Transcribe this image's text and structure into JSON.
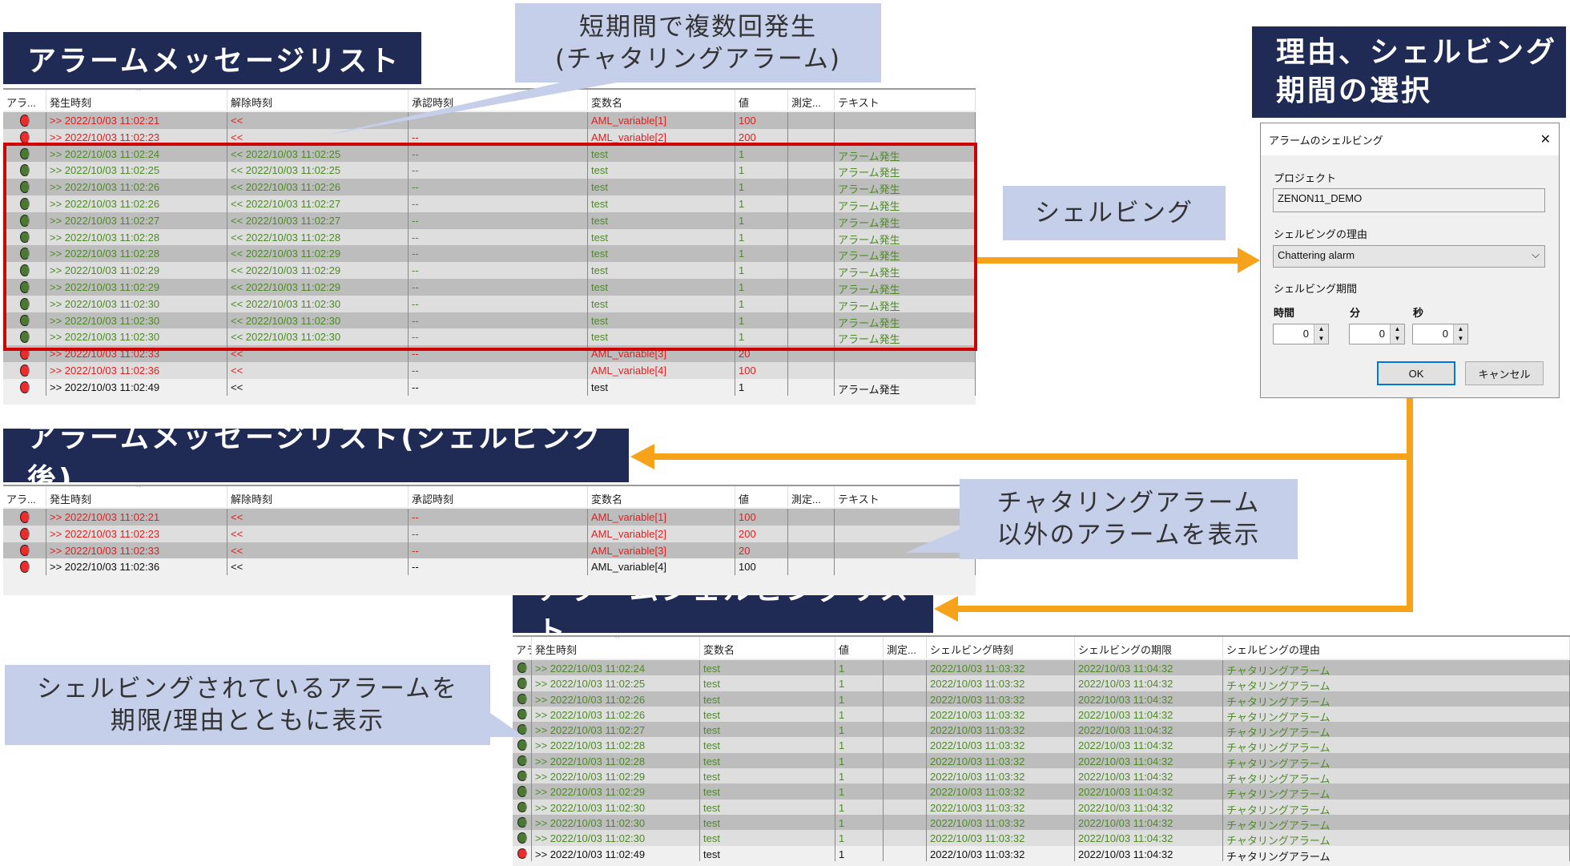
{
  "titles": {
    "list": "アラームメッセージリスト",
    "after": "アラームメッセージリスト(シェルビング後)",
    "shelve_list": "アラームシェルビングリスト",
    "select": "理由、シェルビング\n期間の選択"
  },
  "callouts": {
    "chatter": [
      "短期間で複数回発生",
      "(チャタリングアラーム)"
    ],
    "shelving": "シェルビング",
    "others": [
      "チャタリングアラーム",
      "以外のアラームを表示"
    ],
    "shelved": [
      "シェルビングされているアラームを",
      "期限/理由とともに表示"
    ]
  },
  "colors": {
    "red": "#e02020",
    "green": "#4d8a26",
    "title_bg": "#1f2a55",
    "callout_bg": "#c5cfea",
    "arrow": "#f7a21b",
    "highlight": "#d00000"
  },
  "list_columns": [
    "アラ...",
    "発生時刻",
    "解除時刻",
    "承認時刻",
    "変数名",
    "値",
    "測定...",
    "テキスト"
  ],
  "list_rows": [
    {
      "s": "red",
      "c": "red",
      "v": [
        ">> 2022/10/03 11:02:21",
        "<<",
        "",
        "AML_variable[1]",
        "100",
        "",
        ""
      ]
    },
    {
      "s": "red",
      "c": "red",
      "v": [
        ">> 2022/10/03 11:02:23",
        "<<",
        "--",
        "AML_variable[2]",
        "200",
        "",
        ""
      ]
    },
    {
      "s": "green",
      "c": "green",
      "v": [
        ">> 2022/10/03 11:02:24",
        "<< 2022/10/03 11:02:25",
        "--",
        "test",
        "1",
        "",
        "アラーム発生"
      ]
    },
    {
      "s": "green",
      "c": "green",
      "v": [
        ">> 2022/10/03 11:02:25",
        "<< 2022/10/03 11:02:25",
        "--",
        "test",
        "1",
        "",
        "アラーム発生"
      ]
    },
    {
      "s": "green",
      "c": "green",
      "v": [
        ">> 2022/10/03 11:02:26",
        "<< 2022/10/03 11:02:26",
        "--",
        "test",
        "1",
        "",
        "アラーム発生"
      ]
    },
    {
      "s": "green",
      "c": "green",
      "v": [
        ">> 2022/10/03 11:02:26",
        "<< 2022/10/03 11:02:27",
        "--",
        "test",
        "1",
        "",
        "アラーム発生"
      ]
    },
    {
      "s": "green",
      "c": "green",
      "v": [
        ">> 2022/10/03 11:02:27",
        "<< 2022/10/03 11:02:27",
        "--",
        "test",
        "1",
        "",
        "アラーム発生"
      ]
    },
    {
      "s": "green",
      "c": "green",
      "v": [
        ">> 2022/10/03 11:02:28",
        "<< 2022/10/03 11:02:28",
        "--",
        "test",
        "1",
        "",
        "アラーム発生"
      ]
    },
    {
      "s": "green",
      "c": "green",
      "v": [
        ">> 2022/10/03 11:02:28",
        "<< 2022/10/03 11:02:29",
        "--",
        "test",
        "1",
        "",
        "アラーム発生"
      ]
    },
    {
      "s": "green",
      "c": "green",
      "v": [
        ">> 2022/10/03 11:02:29",
        "<< 2022/10/03 11:02:29",
        "--",
        "test",
        "1",
        "",
        "アラーム発生"
      ]
    },
    {
      "s": "green",
      "c": "green",
      "v": [
        ">> 2022/10/03 11:02:29",
        "<< 2022/10/03 11:02:29",
        "--",
        "test",
        "1",
        "",
        "アラーム発生"
      ]
    },
    {
      "s": "green",
      "c": "green",
      "v": [
        ">> 2022/10/03 11:02:30",
        "<< 2022/10/03 11:02:30",
        "--",
        "test",
        "1",
        "",
        "アラーム発生"
      ]
    },
    {
      "s": "green",
      "c": "green",
      "v": [
        ">> 2022/10/03 11:02:30",
        "<< 2022/10/03 11:02:30",
        "--",
        "test",
        "1",
        "",
        "アラーム発生"
      ]
    },
    {
      "s": "green",
      "c": "green",
      "v": [
        ">> 2022/10/03 11:02:30",
        "<< 2022/10/03 11:02:30",
        "--",
        "test",
        "1",
        "",
        "アラーム発生"
      ]
    },
    {
      "s": "red",
      "c": "red",
      "v": [
        ">> 2022/10/03 11:02:33",
        "<<",
        "--",
        "AML_variable[3]",
        "20",
        "",
        ""
      ]
    },
    {
      "s": "red",
      "c": "red",
      "v": [
        ">> 2022/10/03 11:02:36",
        "<<",
        "--",
        "AML_variable[4]",
        "100",
        "",
        ""
      ]
    },
    {
      "s": "red",
      "c": "black",
      "v": [
        ">> 2022/10/03 11:02:49",
        "<<",
        "--",
        "test",
        "1",
        "",
        "アラーム発生"
      ]
    }
  ],
  "after_rows": [
    {
      "s": "red",
      "c": "red",
      "v": [
        ">> 2022/10/03 11:02:21",
        "<<",
        "--",
        "AML_variable[1]",
        "100",
        "",
        ""
      ]
    },
    {
      "s": "red",
      "c": "red",
      "v": [
        ">> 2022/10/03 11:02:23",
        "<<",
        "--",
        "AML_variable[2]",
        "200",
        "",
        ""
      ]
    },
    {
      "s": "red",
      "c": "red",
      "v": [
        ">> 2022/10/03 11:02:33",
        "<<",
        "--",
        "AML_variable[3]",
        "20",
        "",
        ""
      ]
    },
    {
      "s": "red",
      "c": "black",
      "v": [
        ">> 2022/10/03 11:02:36",
        "<<",
        "--",
        "AML_variable[4]",
        "100",
        "",
        ""
      ]
    }
  ],
  "shelve_columns": [
    "アラ...",
    "発生時刻",
    "変数名",
    "値",
    "測定...",
    "シェルビング時刻",
    "シェルビングの期限",
    "シェルビングの理由"
  ],
  "shelve_rows": [
    {
      "s": "green",
      "c": "green",
      "v": [
        ">> 2022/10/03 11:02:24",
        "test",
        "1",
        "",
        "2022/10/03 11:03:32",
        "2022/10/03 11:04:32",
        "チャタリングアラーム"
      ]
    },
    {
      "s": "green",
      "c": "green",
      "v": [
        ">> 2022/10/03 11:02:25",
        "test",
        "1",
        "",
        "2022/10/03 11:03:32",
        "2022/10/03 11:04:32",
        "チャタリングアラーム"
      ]
    },
    {
      "s": "green",
      "c": "green",
      "v": [
        ">> 2022/10/03 11:02:26",
        "test",
        "1",
        "",
        "2022/10/03 11:03:32",
        "2022/10/03 11:04:32",
        "チャタリングアラーム"
      ]
    },
    {
      "s": "green",
      "c": "green",
      "v": [
        ">> 2022/10/03 11:02:26",
        "test",
        "1",
        "",
        "2022/10/03 11:03:32",
        "2022/10/03 11:04:32",
        "チャタリングアラーム"
      ]
    },
    {
      "s": "green",
      "c": "green",
      "v": [
        ">> 2022/10/03 11:02:27",
        "test",
        "1",
        "",
        "2022/10/03 11:03:32",
        "2022/10/03 11:04:32",
        "チャタリングアラーム"
      ]
    },
    {
      "s": "green",
      "c": "green",
      "v": [
        ">> 2022/10/03 11:02:28",
        "test",
        "1",
        "",
        "2022/10/03 11:03:32",
        "2022/10/03 11:04:32",
        "チャタリングアラーム"
      ]
    },
    {
      "s": "green",
      "c": "green",
      "v": [
        ">> 2022/10/03 11:02:28",
        "test",
        "1",
        "",
        "2022/10/03 11:03:32",
        "2022/10/03 11:04:32",
        "チャタリングアラーム"
      ]
    },
    {
      "s": "green",
      "c": "green",
      "v": [
        ">> 2022/10/03 11:02:29",
        "test",
        "1",
        "",
        "2022/10/03 11:03:32",
        "2022/10/03 11:04:32",
        "チャタリングアラーム"
      ]
    },
    {
      "s": "green",
      "c": "green",
      "v": [
        ">> 2022/10/03 11:02:29",
        "test",
        "1",
        "",
        "2022/10/03 11:03:32",
        "2022/10/03 11:04:32",
        "チャタリングアラーム"
      ]
    },
    {
      "s": "green",
      "c": "green",
      "v": [
        ">> 2022/10/03 11:02:30",
        "test",
        "1",
        "",
        "2022/10/03 11:03:32",
        "2022/10/03 11:04:32",
        "チャタリングアラーム"
      ]
    },
    {
      "s": "green",
      "c": "green",
      "v": [
        ">> 2022/10/03 11:02:30",
        "test",
        "1",
        "",
        "2022/10/03 11:03:32",
        "2022/10/03 11:04:32",
        "チャタリングアラーム"
      ]
    },
    {
      "s": "green",
      "c": "green",
      "v": [
        ">> 2022/10/03 11:02:30",
        "test",
        "1",
        "",
        "2022/10/03 11:03:32",
        "2022/10/03 11:04:32",
        "チャタリングアラーム"
      ]
    },
    {
      "s": "red",
      "c": "black",
      "v": [
        ">> 2022/10/03 11:02:49",
        "test",
        "1",
        "",
        "2022/10/03 11:03:32",
        "2022/10/03 11:04:32",
        "チャタリングアラーム"
      ]
    }
  ],
  "dialog": {
    "title": "アラームのシェルビング",
    "close": "✕",
    "project_label": "プロジェクト",
    "project_value": "ZENON11_DEMO",
    "reason_label": "シェルビングの理由",
    "reason_value": "Chattering alarm",
    "period_label": "シェルビング期間",
    "hours_label": "時間",
    "minutes_label": "分",
    "seconds_label": "秒",
    "hours": "0",
    "minutes": "0",
    "seconds": "0",
    "ok": "OK",
    "cancel": "キャンセル"
  }
}
